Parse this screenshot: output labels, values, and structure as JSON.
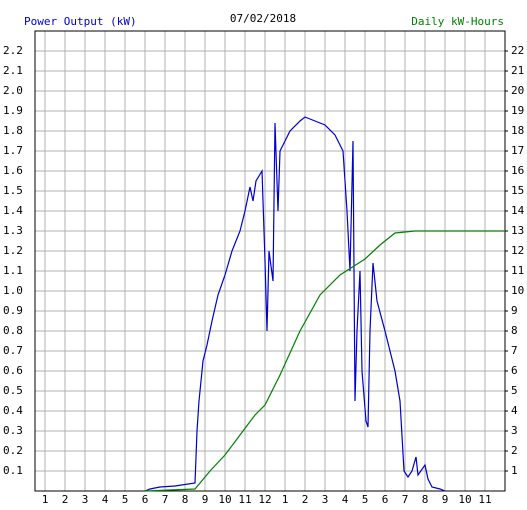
{
  "chart_data": {
    "type": "line",
    "title": "07/02/2018",
    "y_label": "Power Output (kW)",
    "y2_label": "Daily kW-Hours",
    "grid": true,
    "xlim": [
      0.5,
      24
    ],
    "xticks": [
      1,
      2,
      3,
      4,
      5,
      6,
      7,
      8,
      9,
      10,
      11,
      12,
      {
        "value": 13,
        "label": "1"
      },
      {
        "value": 14,
        "label": "2"
      },
      {
        "value": 15,
        "label": "3"
      },
      {
        "value": 16,
        "label": "4"
      },
      {
        "value": 17,
        "label": "5"
      },
      {
        "value": 18,
        "label": "6"
      },
      {
        "value": 19,
        "label": "7"
      },
      {
        "value": 20,
        "label": "8"
      },
      {
        "value": 21,
        "label": "9"
      },
      {
        "value": 22,
        "label": "10"
      },
      {
        "value": 23,
        "label": "11"
      }
    ],
    "ylim": [
      0,
      2.3
    ],
    "yticks": [
      0.1,
      0.2,
      0.3,
      0.4,
      0.5,
      0.6,
      0.7,
      0.8,
      0.9,
      {
        "value": 1.0,
        "label": "1.0"
      },
      1.1,
      1.2,
      1.3,
      1.4,
      1.5,
      1.6,
      1.7,
      1.8,
      1.9,
      {
        "value": 2.0,
        "label": "2.0"
      },
      2.1,
      2.2
    ],
    "y2lim": [
      0,
      23
    ],
    "y2ticks": [
      1,
      2,
      3,
      4,
      5,
      6,
      7,
      8,
      9,
      10,
      11,
      12,
      13,
      14,
      15,
      16,
      17,
      18,
      19,
      20,
      21,
      22
    ],
    "series": [
      {
        "name": "Power Output (kW)",
        "color": "#0000cc",
        "x": [
          6.0,
          6.25,
          6.75,
          7.5,
          8.5,
          8.6,
          8.7,
          8.9,
          9.1,
          9.35,
          9.65,
          10.0,
          10.35,
          10.75,
          11.0,
          11.25,
          11.4,
          11.55,
          11.85,
          12.0,
          12.1,
          12.2,
          12.4,
          12.5,
          12.65,
          12.75,
          13.25,
          13.75,
          14.0,
          14.5,
          15.0,
          15.5,
          15.9,
          16.1,
          16.25,
          16.4,
          16.5,
          16.6,
          16.75,
          16.85,
          17.05,
          17.15,
          17.25,
          17.4,
          17.6,
          18.0,
          18.5,
          18.75,
          18.95,
          19.15,
          19.35,
          19.55,
          19.65,
          20.0,
          20.15,
          20.35,
          20.75,
          21.0
        ],
        "values": [
          0,
          0.01,
          0.02,
          0.025,
          0.04,
          0.3,
          0.45,
          0.65,
          0.73,
          0.85,
          0.98,
          1.08,
          1.2,
          1.3,
          1.4,
          1.52,
          1.45,
          1.55,
          1.6,
          1.15,
          0.8,
          1.2,
          1.05,
          1.84,
          1.4,
          1.7,
          1.8,
          1.85,
          1.87,
          1.85,
          1.83,
          1.78,
          1.7,
          1.4,
          1.1,
          1.75,
          0.45,
          0.8,
          1.1,
          0.6,
          0.35,
          0.32,
          0.8,
          1.14,
          0.95,
          0.8,
          0.6,
          0.45,
          0.1,
          0.07,
          0.1,
          0.17,
          0.08,
          0.13,
          0.06,
          0.02,
          0.01,
          0
        ]
      },
      {
        "name": "Daily kW-Hours",
        "color": "#008000",
        "axis": "y2",
        "x": [
          6.0,
          8.5,
          9.25,
          10.0,
          10.75,
          11.5,
          12.0,
          12.75,
          13.75,
          14.75,
          15.75,
          17.0,
          17.75,
          18.5,
          19.5,
          24.0
        ],
        "values": [
          0,
          0.1,
          1.0,
          1.8,
          2.8,
          3.8,
          4.3,
          5.8,
          8.0,
          9.8,
          10.8,
          11.6,
          12.3,
          12.9,
          13.0,
          13.0
        ]
      }
    ]
  }
}
